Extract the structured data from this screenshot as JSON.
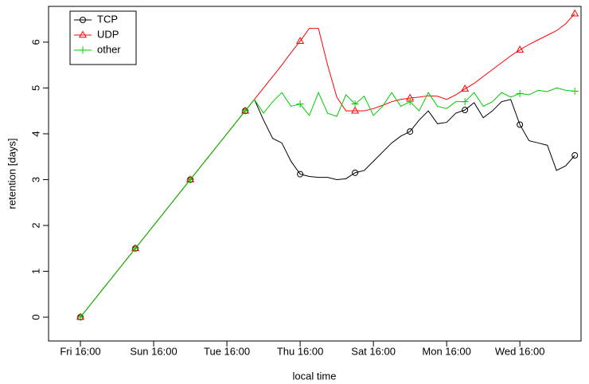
{
  "chart_data": {
    "type": "line",
    "xlabel": "local time",
    "ylabel": "retention [days]",
    "x": [
      0,
      0.25,
      0.5,
      0.75,
      1,
      1.25,
      1.5,
      1.75,
      2,
      2.25,
      2.5,
      2.75,
      3,
      3.25,
      3.5,
      3.75,
      4,
      4.25,
      4.5,
      4.75,
      5,
      5.25,
      5.5,
      5.75,
      6,
      6.25,
      6.5,
      6.75,
      7,
      7.25,
      7.5,
      7.75,
      8,
      8.25,
      8.5,
      8.75,
      9,
      9.25,
      9.5,
      9.75,
      10,
      10.25,
      10.5,
      10.75,
      11,
      11.25,
      11.5,
      11.75,
      12,
      12.25,
      12.5,
      12.75,
      13,
      13.25,
      13.5
    ],
    "series": [
      {
        "name": "TCP",
        "color": "#000000",
        "marker": "circle",
        "values": [
          0,
          0.25,
          0.5,
          0.75,
          1,
          1.25,
          1.5,
          1.75,
          2,
          2.25,
          2.5,
          2.75,
          3,
          3.25,
          3.5,
          3.75,
          4,
          4.25,
          4.5,
          4.75,
          4.3,
          3.9,
          3.8,
          3.4,
          3.12,
          3.07,
          3.05,
          3.05,
          3.0,
          3.02,
          3.15,
          3.2,
          3.4,
          3.6,
          3.8,
          3.95,
          4.05,
          4.3,
          4.5,
          4.22,
          4.25,
          4.45,
          4.52,
          4.68,
          4.35,
          4.5,
          4.7,
          4.75,
          4.2,
          3.85,
          3.8,
          3.75,
          3.2,
          3.3,
          3.53
        ]
      },
      {
        "name": "UDP",
        "color": "#ff0000",
        "marker": "triangle",
        "values": [
          0,
          0.25,
          0.5,
          0.75,
          1,
          1.25,
          1.5,
          1.75,
          2,
          2.25,
          2.5,
          2.75,
          3,
          3.25,
          3.5,
          3.75,
          4,
          4.25,
          4.5,
          4.75,
          5.0,
          5.25,
          5.5,
          5.77,
          6.02,
          6.3,
          6.3,
          5.5,
          4.8,
          4.5,
          4.5,
          4.5,
          4.55,
          4.62,
          4.7,
          4.75,
          4.78,
          4.8,
          4.83,
          4.82,
          4.75,
          4.85,
          4.98,
          5.1,
          5.25,
          5.4,
          5.55,
          5.7,
          5.83,
          5.95,
          6.05,
          6.15,
          6.25,
          6.4,
          6.62
        ]
      },
      {
        "name": "other",
        "color": "#00cd00",
        "marker": "plus",
        "values": [
          0,
          0.25,
          0.5,
          0.75,
          1,
          1.25,
          1.5,
          1.75,
          2,
          2.25,
          2.5,
          2.75,
          3,
          3.25,
          3.5,
          3.75,
          4,
          4.25,
          4.5,
          4.75,
          4.45,
          4.7,
          4.9,
          4.6,
          4.65,
          4.4,
          4.9,
          4.45,
          4.38,
          4.85,
          4.65,
          4.82,
          4.4,
          4.6,
          4.9,
          4.6,
          4.7,
          4.5,
          4.9,
          4.6,
          4.55,
          4.7,
          4.7,
          4.9,
          4.6,
          4.7,
          4.9,
          4.8,
          4.88,
          4.85,
          4.95,
          4.92,
          5.0,
          4.95,
          4.93
        ]
      }
    ],
    "xlim": [
      -0.87,
      13.67
    ],
    "xticks": [
      {
        "value": 0,
        "label": "Fri 16:00"
      },
      {
        "value": 2,
        "label": "Sun 16:00"
      },
      {
        "value": 4,
        "label": "Tue 16:00"
      },
      {
        "value": 6,
        "label": "Thu 16:00"
      },
      {
        "value": 8,
        "label": "Sat 16:00"
      },
      {
        "value": 10,
        "label": "Mon 16:00"
      },
      {
        "value": 12,
        "label": "Wed 16:00"
      }
    ],
    "ylim": [
      -0.52,
      6.78
    ],
    "yticks": [
      0,
      1,
      2,
      3,
      4,
      5,
      6
    ],
    "legend": "top-left"
  }
}
